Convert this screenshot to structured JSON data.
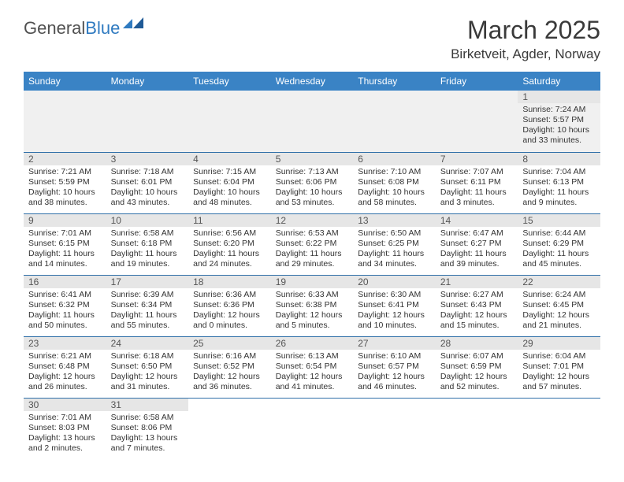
{
  "logo": {
    "text1": "General",
    "text2": "Blue"
  },
  "title": "March 2025",
  "location": "Birketveit, Agder, Norway",
  "colors": {
    "header_bg": "#3a83c5",
    "header_fg": "#ffffff",
    "rule": "#2f6fa8",
    "daynum_bg": "#e6e6e6",
    "empty_bg": "#f0f0f0",
    "logo_blue": "#2f7ac0"
  },
  "day_names": [
    "Sunday",
    "Monday",
    "Tuesday",
    "Wednesday",
    "Thursday",
    "Friday",
    "Saturday"
  ],
  "weeks": [
    [
      null,
      null,
      null,
      null,
      null,
      null,
      {
        "n": "1",
        "sunrise": "7:24 AM",
        "sunset": "5:57 PM",
        "daylight": "10 hours and 33 minutes."
      }
    ],
    [
      {
        "n": "2",
        "sunrise": "7:21 AM",
        "sunset": "5:59 PM",
        "daylight": "10 hours and 38 minutes."
      },
      {
        "n": "3",
        "sunrise": "7:18 AM",
        "sunset": "6:01 PM",
        "daylight": "10 hours and 43 minutes."
      },
      {
        "n": "4",
        "sunrise": "7:15 AM",
        "sunset": "6:04 PM",
        "daylight": "10 hours and 48 minutes."
      },
      {
        "n": "5",
        "sunrise": "7:13 AM",
        "sunset": "6:06 PM",
        "daylight": "10 hours and 53 minutes."
      },
      {
        "n": "6",
        "sunrise": "7:10 AM",
        "sunset": "6:08 PM",
        "daylight": "10 hours and 58 minutes."
      },
      {
        "n": "7",
        "sunrise": "7:07 AM",
        "sunset": "6:11 PM",
        "daylight": "11 hours and 3 minutes."
      },
      {
        "n": "8",
        "sunrise": "7:04 AM",
        "sunset": "6:13 PM",
        "daylight": "11 hours and 9 minutes."
      }
    ],
    [
      {
        "n": "9",
        "sunrise": "7:01 AM",
        "sunset": "6:15 PM",
        "daylight": "11 hours and 14 minutes."
      },
      {
        "n": "10",
        "sunrise": "6:58 AM",
        "sunset": "6:18 PM",
        "daylight": "11 hours and 19 minutes."
      },
      {
        "n": "11",
        "sunrise": "6:56 AM",
        "sunset": "6:20 PM",
        "daylight": "11 hours and 24 minutes."
      },
      {
        "n": "12",
        "sunrise": "6:53 AM",
        "sunset": "6:22 PM",
        "daylight": "11 hours and 29 minutes."
      },
      {
        "n": "13",
        "sunrise": "6:50 AM",
        "sunset": "6:25 PM",
        "daylight": "11 hours and 34 minutes."
      },
      {
        "n": "14",
        "sunrise": "6:47 AM",
        "sunset": "6:27 PM",
        "daylight": "11 hours and 39 minutes."
      },
      {
        "n": "15",
        "sunrise": "6:44 AM",
        "sunset": "6:29 PM",
        "daylight": "11 hours and 45 minutes."
      }
    ],
    [
      {
        "n": "16",
        "sunrise": "6:41 AM",
        "sunset": "6:32 PM",
        "daylight": "11 hours and 50 minutes."
      },
      {
        "n": "17",
        "sunrise": "6:39 AM",
        "sunset": "6:34 PM",
        "daylight": "11 hours and 55 minutes."
      },
      {
        "n": "18",
        "sunrise": "6:36 AM",
        "sunset": "6:36 PM",
        "daylight": "12 hours and 0 minutes."
      },
      {
        "n": "19",
        "sunrise": "6:33 AM",
        "sunset": "6:38 PM",
        "daylight": "12 hours and 5 minutes."
      },
      {
        "n": "20",
        "sunrise": "6:30 AM",
        "sunset": "6:41 PM",
        "daylight": "12 hours and 10 minutes."
      },
      {
        "n": "21",
        "sunrise": "6:27 AM",
        "sunset": "6:43 PM",
        "daylight": "12 hours and 15 minutes."
      },
      {
        "n": "22",
        "sunrise": "6:24 AM",
        "sunset": "6:45 PM",
        "daylight": "12 hours and 21 minutes."
      }
    ],
    [
      {
        "n": "23",
        "sunrise": "6:21 AM",
        "sunset": "6:48 PM",
        "daylight": "12 hours and 26 minutes."
      },
      {
        "n": "24",
        "sunrise": "6:18 AM",
        "sunset": "6:50 PM",
        "daylight": "12 hours and 31 minutes."
      },
      {
        "n": "25",
        "sunrise": "6:16 AM",
        "sunset": "6:52 PM",
        "daylight": "12 hours and 36 minutes."
      },
      {
        "n": "26",
        "sunrise": "6:13 AM",
        "sunset": "6:54 PM",
        "daylight": "12 hours and 41 minutes."
      },
      {
        "n": "27",
        "sunrise": "6:10 AM",
        "sunset": "6:57 PM",
        "daylight": "12 hours and 46 minutes."
      },
      {
        "n": "28",
        "sunrise": "6:07 AM",
        "sunset": "6:59 PM",
        "daylight": "12 hours and 52 minutes."
      },
      {
        "n": "29",
        "sunrise": "6:04 AM",
        "sunset": "7:01 PM",
        "daylight": "12 hours and 57 minutes."
      }
    ],
    [
      {
        "n": "30",
        "sunrise": "7:01 AM",
        "sunset": "8:03 PM",
        "daylight": "13 hours and 2 minutes."
      },
      {
        "n": "31",
        "sunrise": "6:58 AM",
        "sunset": "8:06 PM",
        "daylight": "13 hours and 7 minutes."
      },
      null,
      null,
      null,
      null,
      null
    ]
  ],
  "labels": {
    "sunrise": "Sunrise:",
    "sunset": "Sunset:",
    "daylight": "Daylight:"
  }
}
